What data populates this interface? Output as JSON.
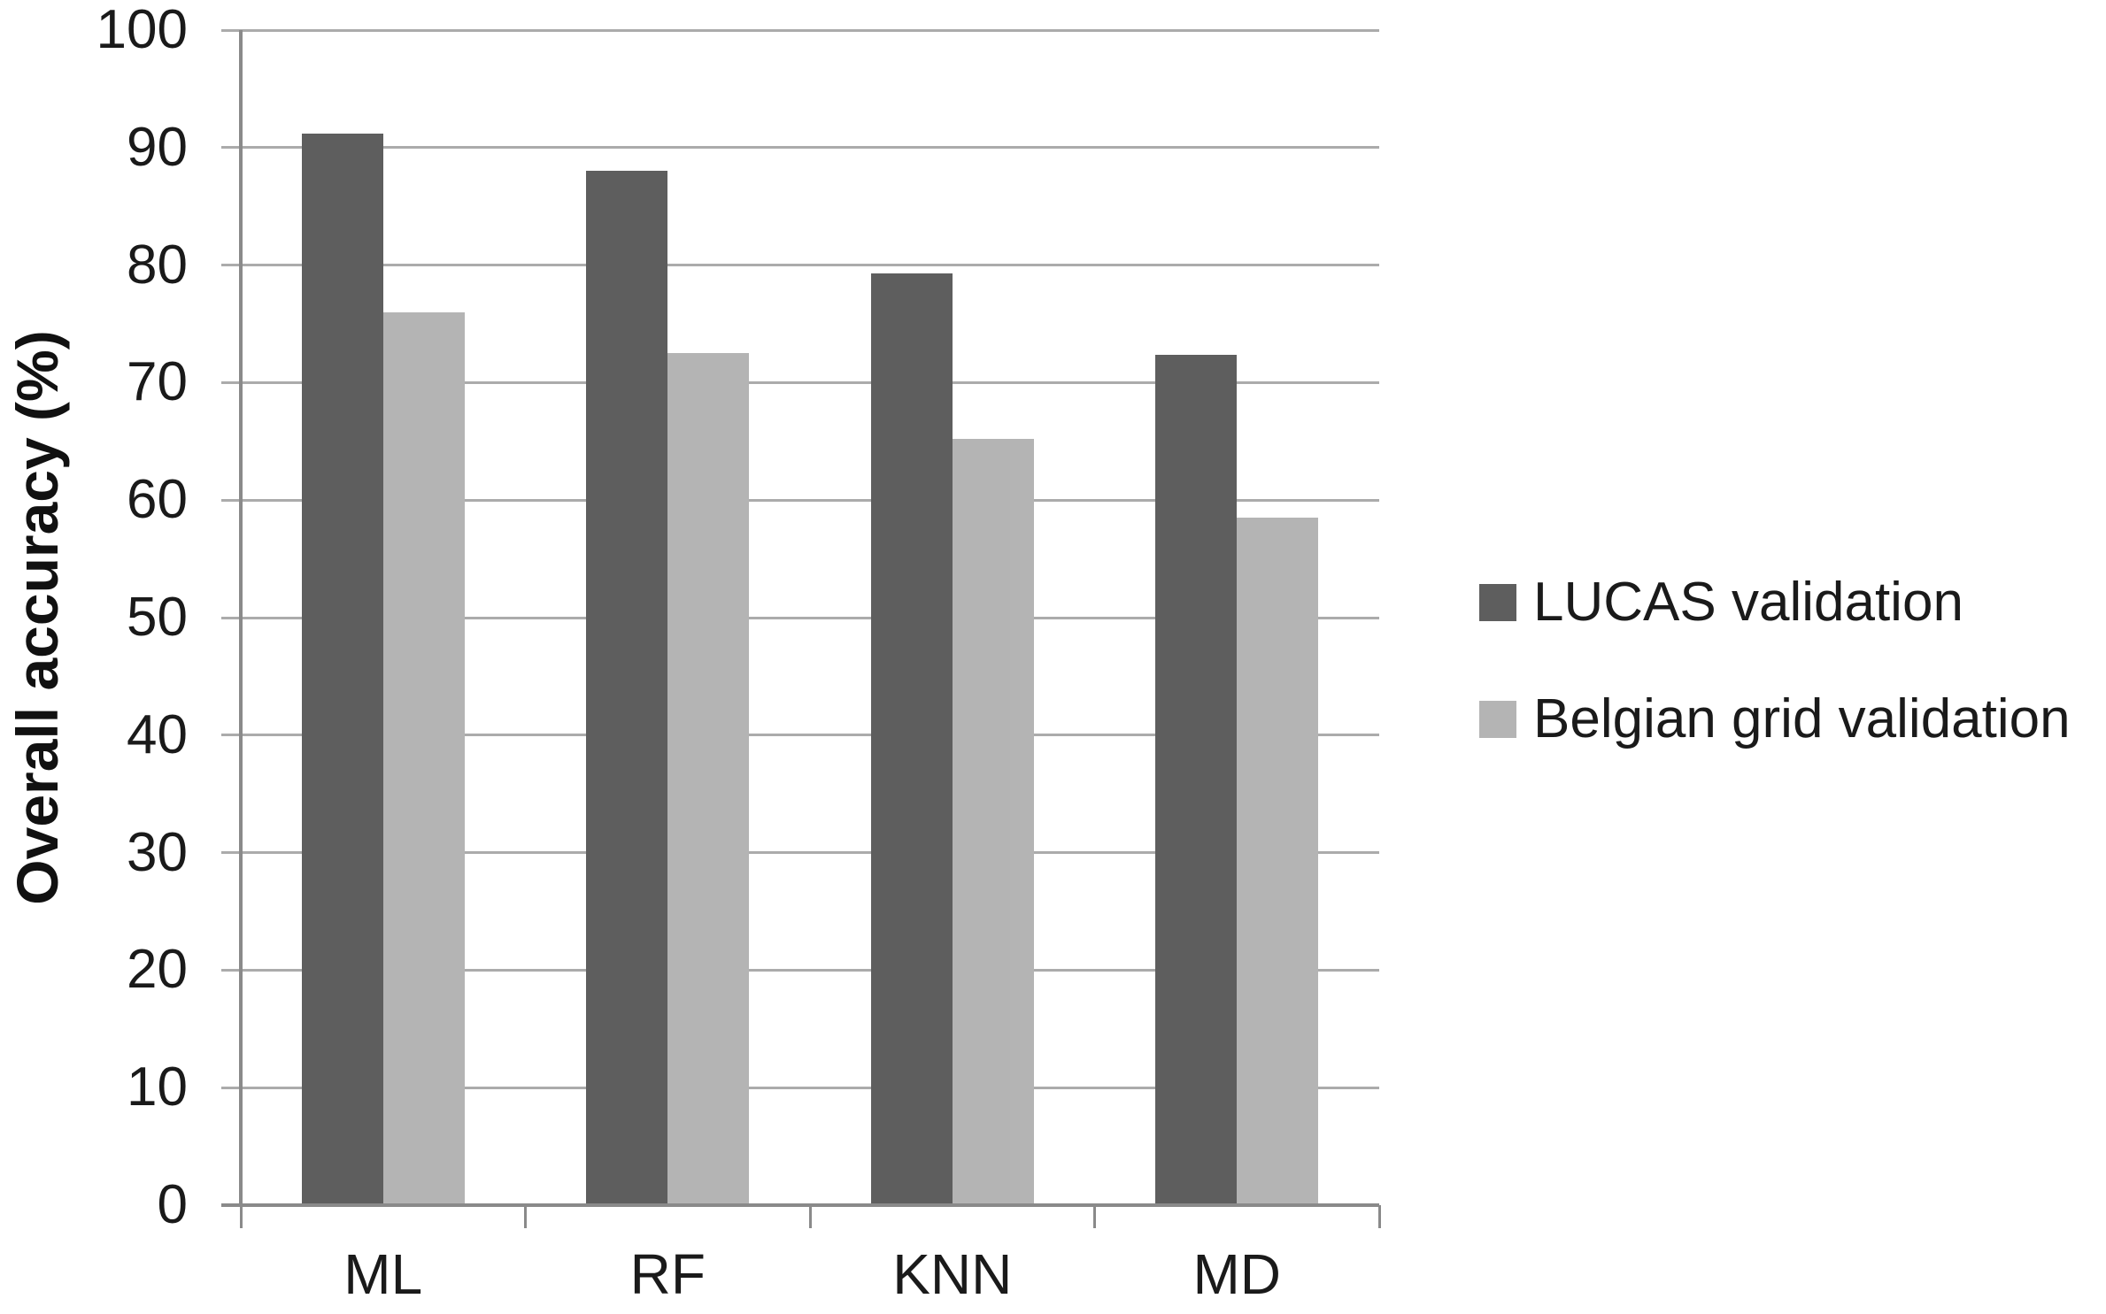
{
  "figure": {
    "ylabel": "Overall accuracy (%)"
  },
  "chart_data": {
    "type": "bar",
    "title": "",
    "xlabel": "",
    "ylabel": "Overall accuracy (%)",
    "categories": [
      "ML",
      "RF",
      "KNN",
      "MD"
    ],
    "series": [
      {
        "name": "LUCAS validation",
        "color": "#5e5e5e",
        "values": [
          91.2,
          88.0,
          79.3,
          72.4
        ]
      },
      {
        "name": "Belgian grid validation",
        "color": "#b4b4b4",
        "values": [
          76.0,
          72.5,
          65.2,
          58.5
        ]
      }
    ],
    "ylim": [
      0,
      100
    ],
    "yticks": [
      0,
      10,
      20,
      30,
      40,
      50,
      60,
      70,
      80,
      90,
      100
    ],
    "ytick_step": 10,
    "grid": "horizontal",
    "gridline_color": "#ababab",
    "axis_color": "#8a8a8a",
    "legend_position": "right"
  }
}
